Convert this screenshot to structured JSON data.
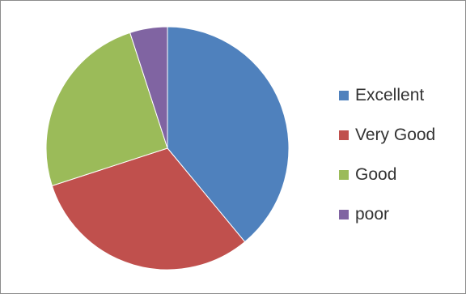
{
  "chart_data": {
    "type": "pie",
    "categories": [
      "Excellent",
      "Very Good",
      "Good",
      "poor"
    ],
    "values": [
      39,
      31,
      25,
      5
    ],
    "colors": [
      "#4f81bd",
      "#c0504d",
      "#9bbb59",
      "#8064a2"
    ],
    "title": "",
    "legend": "right"
  }
}
